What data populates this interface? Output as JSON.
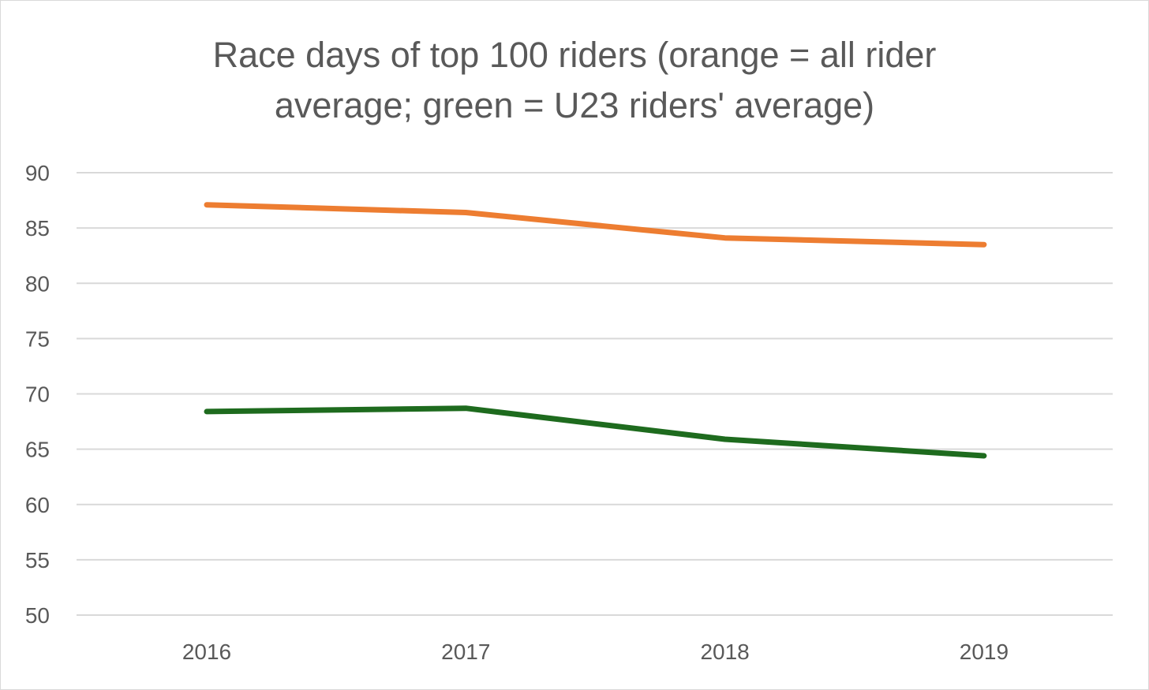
{
  "chart_data": {
    "type": "line",
    "title_line_1": "Race days of top 100 riders (orange = all rider",
    "title_line_2": "average; green = U23 riders' average)",
    "xlabel": "",
    "ylabel": "",
    "categories": [
      "2016",
      "2017",
      "2018",
      "2019"
    ],
    "ylim": [
      50,
      90
    ],
    "yticks": [
      50,
      55,
      60,
      65,
      70,
      75,
      80,
      85,
      90
    ],
    "grid": true,
    "series": [
      {
        "name": "all rider average",
        "color": "#ed7d31",
        "values": [
          87.1,
          86.4,
          84.1,
          83.5
        ]
      },
      {
        "name": "U23 riders' average",
        "color": "#1e6b1e",
        "values": [
          68.4,
          68.7,
          65.9,
          64.4
        ]
      }
    ]
  }
}
